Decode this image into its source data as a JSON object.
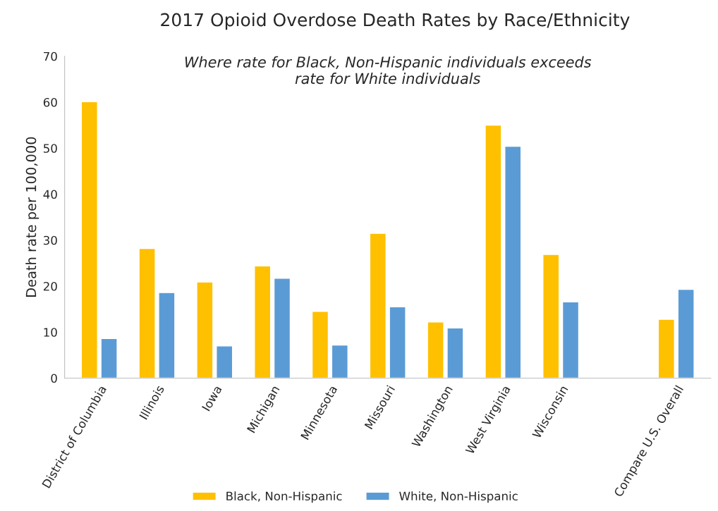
{
  "chart_data": {
    "type": "bar",
    "title": "2017 Opioid Overdose Death Rates by Race/Ethnicity",
    "subtitle": "Where rate for Black, Non-Hispanic individuals exceeds\nrate for White individuals",
    "ylabel": "Death rate per 100,000",
    "categories": [
      "District of Columbia",
      "Illinois",
      "Iowa",
      "Michigan",
      "Minnesota",
      "Missouri",
      "Washington",
      "West Virginia",
      "Wisconsin",
      null,
      "Compare U.S. Overall"
    ],
    "series": [
      {
        "name": "Black, Non-Hispanic",
        "color": "#ffc000",
        "values": [
          60.1,
          28.2,
          20.9,
          24.4,
          14.5,
          31.5,
          12.2,
          55.0,
          26.9,
          null,
          12.8
        ]
      },
      {
        "name": "White, Non-Hispanic",
        "color": "#5b9bd5",
        "values": [
          8.6,
          18.6,
          7.0,
          21.7,
          7.2,
          15.5,
          10.9,
          50.4,
          16.6,
          null,
          19.3
        ]
      }
    ],
    "ylim": [
      0,
      70
    ],
    "yticks": [
      0,
      10,
      20,
      30,
      40,
      50,
      60,
      70
    ],
    "grid": false,
    "legend": "bottom"
  }
}
